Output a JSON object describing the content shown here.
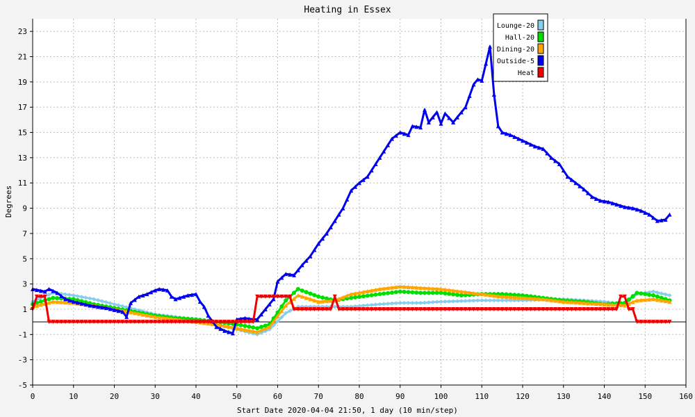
{
  "chart_data": {
    "type": "line",
    "title": "Heating in Essex",
    "xlabel": "Start Date 2020-04-04 21:50, 1 day (10 min/step)",
    "ylabel": "Degrees",
    "xlim": [
      0,
      160
    ],
    "ylim": [
      -5,
      24
    ],
    "x_ticks": [
      0,
      10,
      20,
      30,
      40,
      50,
      60,
      70,
      80,
      90,
      100,
      110,
      120,
      130,
      140,
      150,
      160
    ],
    "y_ticks": [
      -5,
      -3,
      -1,
      1,
      3,
      5,
      7,
      9,
      11,
      13,
      15,
      17,
      19,
      21,
      23
    ],
    "grid": true,
    "legend_position": "top-right",
    "series": [
      {
        "name": "Lounge-20",
        "color": "#87ceeb",
        "marker": "diamond",
        "points": [
          [
            0,
            1.6
          ],
          [
            5,
            2.3
          ],
          [
            10,
            2.1
          ],
          [
            15,
            1.8
          ],
          [
            20,
            1.4
          ],
          [
            25,
            1.0
          ],
          [
            30,
            0.6
          ],
          [
            35,
            0.4
          ],
          [
            40,
            0.2
          ],
          [
            45,
            -0.2
          ],
          [
            50,
            -0.6
          ],
          [
            55,
            -1.0
          ],
          [
            58,
            -0.6
          ],
          [
            62,
            0.7
          ],
          [
            65,
            1.2
          ],
          [
            70,
            1.2
          ],
          [
            74,
            1.2
          ],
          [
            78,
            1.2
          ],
          [
            85,
            1.4
          ],
          [
            90,
            1.5
          ],
          [
            95,
            1.5
          ],
          [
            100,
            1.6
          ],
          [
            110,
            1.7
          ],
          [
            120,
            1.7
          ],
          [
            130,
            1.8
          ],
          [
            140,
            1.6
          ],
          [
            145,
            1.4
          ],
          [
            148,
            2.2
          ],
          [
            152,
            2.4
          ],
          [
            156,
            2.1
          ]
        ]
      },
      {
        "name": "Hall-20",
        "color": "#00dd00",
        "marker": "circle",
        "points": [
          [
            0,
            1.4
          ],
          [
            5,
            1.9
          ],
          [
            10,
            1.8
          ],
          [
            15,
            1.4
          ],
          [
            20,
            1.1
          ],
          [
            25,
            0.8
          ],
          [
            30,
            0.5
          ],
          [
            35,
            0.3
          ],
          [
            40,
            0.2
          ],
          [
            45,
            0.0
          ],
          [
            50,
            -0.2
          ],
          [
            55,
            -0.5
          ],
          [
            58,
            -0.2
          ],
          [
            62,
            1.7
          ],
          [
            65,
            2.6
          ],
          [
            70,
            2.0
          ],
          [
            74,
            1.7
          ],
          [
            78,
            1.9
          ],
          [
            85,
            2.2
          ],
          [
            90,
            2.4
          ],
          [
            95,
            2.3
          ],
          [
            100,
            2.3
          ],
          [
            105,
            2.1
          ],
          [
            110,
            2.2
          ],
          [
            115,
            2.2
          ],
          [
            120,
            2.1
          ],
          [
            125,
            1.9
          ],
          [
            130,
            1.7
          ],
          [
            135,
            1.6
          ],
          [
            140,
            1.4
          ],
          [
            145,
            1.5
          ],
          [
            148,
            2.3
          ],
          [
            152,
            2.1
          ],
          [
            156,
            1.7
          ]
        ]
      },
      {
        "name": "Dining-20",
        "color": "#ffa500",
        "marker": "triangle",
        "points": [
          [
            0,
            1.2
          ],
          [
            5,
            1.6
          ],
          [
            10,
            1.5
          ],
          [
            15,
            1.3
          ],
          [
            20,
            1.0
          ],
          [
            25,
            0.7
          ],
          [
            30,
            0.4
          ],
          [
            35,
            0.2
          ],
          [
            40,
            0.0
          ],
          [
            45,
            -0.2
          ],
          [
            50,
            -0.5
          ],
          [
            55,
            -0.8
          ],
          [
            58,
            -0.4
          ],
          [
            62,
            1.3
          ],
          [
            65,
            2.1
          ],
          [
            70,
            1.6
          ],
          [
            74,
            1.7
          ],
          [
            78,
            2.2
          ],
          [
            85,
            2.6
          ],
          [
            90,
            2.8
          ],
          [
            95,
            2.7
          ],
          [
            100,
            2.6
          ],
          [
            105,
            2.4
          ],
          [
            110,
            2.2
          ],
          [
            115,
            2.0
          ],
          [
            120,
            1.9
          ],
          [
            125,
            1.8
          ],
          [
            130,
            1.6
          ],
          [
            135,
            1.5
          ],
          [
            140,
            1.4
          ],
          [
            145,
            1.3
          ],
          [
            148,
            1.7
          ],
          [
            152,
            1.8
          ],
          [
            156,
            1.6
          ]
        ]
      },
      {
        "name": "Outside-5",
        "color": "#0000ee",
        "marker": "triangle",
        "points": [
          [
            0,
            2.6
          ],
          [
            3,
            2.4
          ],
          [
            4,
            2.6
          ],
          [
            6,
            2.3
          ],
          [
            8,
            1.8
          ],
          [
            10,
            1.6
          ],
          [
            14,
            1.3
          ],
          [
            18,
            1.1
          ],
          [
            22,
            0.8
          ],
          [
            23,
            0.4
          ],
          [
            24,
            1.5
          ],
          [
            26,
            2.0
          ],
          [
            28,
            2.2
          ],
          [
            30,
            2.5
          ],
          [
            31,
            2.6
          ],
          [
            33,
            2.5
          ],
          [
            34,
            2.0
          ],
          [
            35,
            1.8
          ],
          [
            38,
            2.1
          ],
          [
            40,
            2.2
          ],
          [
            41,
            1.6
          ],
          [
            42,
            1.2
          ],
          [
            43,
            0.5
          ],
          [
            45,
            -0.4
          ],
          [
            47,
            -0.7
          ],
          [
            49,
            -0.9
          ],
          [
            50,
            0.2
          ],
          [
            52,
            0.3
          ],
          [
            54,
            0.2
          ],
          [
            55,
            0.2
          ],
          [
            57,
            1.0
          ],
          [
            59,
            1.8
          ],
          [
            60,
            3.2
          ],
          [
            62,
            3.8
          ],
          [
            64,
            3.7
          ],
          [
            66,
            4.5
          ],
          [
            68,
            5.2
          ],
          [
            70,
            6.2
          ],
          [
            72,
            7.0
          ],
          [
            74,
            8.0
          ],
          [
            76,
            9.0
          ],
          [
            78,
            10.4
          ],
          [
            80,
            11.0
          ],
          [
            82,
            11.5
          ],
          [
            84,
            12.5
          ],
          [
            86,
            13.5
          ],
          [
            88,
            14.5
          ],
          [
            90,
            15.0
          ],
          [
            92,
            14.8
          ],
          [
            93,
            15.5
          ],
          [
            95,
            15.4
          ],
          [
            96,
            16.8
          ],
          [
            97,
            15.8
          ],
          [
            99,
            16.6
          ],
          [
            100,
            15.7
          ],
          [
            101,
            16.5
          ],
          [
            103,
            15.8
          ],
          [
            104,
            16.2
          ],
          [
            106,
            17.0
          ],
          [
            108,
            18.8
          ],
          [
            109,
            19.2
          ],
          [
            110,
            19.1
          ],
          [
            112,
            21.8
          ],
          [
            113,
            18.0
          ],
          [
            114,
            15.5
          ],
          [
            115,
            15.0
          ],
          [
            117,
            14.8
          ],
          [
            119,
            14.5
          ],
          [
            121,
            14.2
          ],
          [
            123,
            13.9
          ],
          [
            125,
            13.7
          ],
          [
            127,
            13.0
          ],
          [
            129,
            12.5
          ],
          [
            131,
            11.5
          ],
          [
            133,
            11.0
          ],
          [
            135,
            10.5
          ],
          [
            137,
            9.9
          ],
          [
            139,
            9.6
          ],
          [
            141,
            9.5
          ],
          [
            143,
            9.3
          ],
          [
            145,
            9.1
          ],
          [
            147,
            9.0
          ],
          [
            149,
            8.8
          ],
          [
            151,
            8.5
          ],
          [
            153,
            8.0
          ],
          [
            155,
            8.1
          ],
          [
            156,
            8.5
          ]
        ]
      },
      {
        "name": "Heat",
        "color": "#ee0000",
        "marker": "triangle-down",
        "points": [
          [
            0,
            1
          ],
          [
            1,
            2
          ],
          [
            3,
            2
          ],
          [
            4,
            0
          ],
          [
            54,
            0
          ],
          [
            55,
            2
          ],
          [
            63,
            2
          ],
          [
            64,
            1
          ],
          [
            73,
            1
          ],
          [
            74,
            2
          ],
          [
            75,
            1
          ],
          [
            143,
            1
          ],
          [
            144,
            2
          ],
          [
            145,
            2
          ],
          [
            146,
            1
          ],
          [
            147,
            1
          ],
          [
            148,
            0
          ],
          [
            156,
            0
          ]
        ]
      }
    ]
  }
}
